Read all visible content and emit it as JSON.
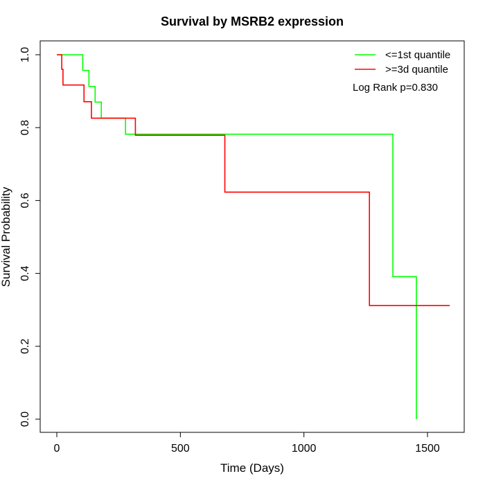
{
  "chart_data": {
    "type": "line",
    "subtype": "kaplan-meier-step",
    "title": "Survival by MSRB2 expression",
    "xlabel": "Time (Days)",
    "ylabel": "Survival Probability",
    "xlim": [
      0,
      1600
    ],
    "ylim": [
      0,
      1.0
    ],
    "x_ticks": [
      0,
      500,
      1000,
      1500
    ],
    "x_tick_labels": [
      "0",
      "500",
      "1000",
      "1500"
    ],
    "y_ticks": [
      0.0,
      0.2,
      0.4,
      0.6,
      0.8,
      1.0
    ],
    "y_tick_labels": [
      "0.0",
      "0.2",
      "0.4",
      "0.6",
      "0.8",
      "1.0"
    ],
    "legend_position": "top-right",
    "annotation": "Log Rank p=0.830",
    "series": [
      {
        "name": "<=1st quantile",
        "color": "#00ff00",
        "steps": [
          {
            "x": 0,
            "y": 1.0
          },
          {
            "x": 105,
            "y": 0.957
          },
          {
            "x": 130,
            "y": 0.913
          },
          {
            "x": 155,
            "y": 0.87
          },
          {
            "x": 180,
            "y": 0.826
          },
          {
            "x": 278,
            "y": 0.782
          },
          {
            "x": 1360,
            "y": 0.391
          },
          {
            "x": 1455,
            "y": 0.0
          }
        ],
        "end_x": 1455
      },
      {
        "name": ">=3d quantile",
        "color": "#ff0000",
        "steps": [
          {
            "x": 0,
            "y": 1.0
          },
          {
            "x": 20,
            "y": 0.96
          },
          {
            "x": 25,
            "y": 0.917
          },
          {
            "x": 110,
            "y": 0.871
          },
          {
            "x": 140,
            "y": 0.826
          },
          {
            "x": 318,
            "y": 0.779
          },
          {
            "x": 680,
            "y": 0.623
          },
          {
            "x": 1265,
            "y": 0.312
          }
        ],
        "end_x": 1590
      }
    ]
  }
}
